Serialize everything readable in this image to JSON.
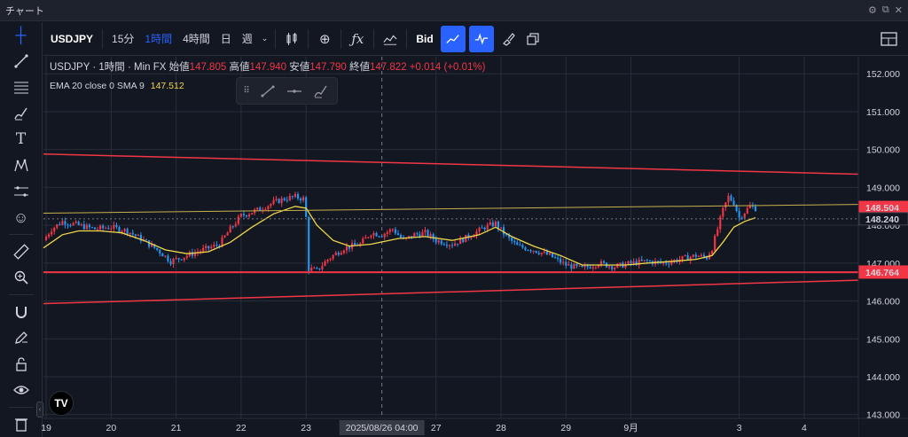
{
  "window": {
    "title": "チャート",
    "title_icons": [
      "settings-icon",
      "popout-icon",
      "close-icon"
    ]
  },
  "toolbar": {
    "symbol": "USDJPY",
    "intervals": [
      "15分",
      "1時間",
      "4時間",
      "日",
      "週"
    ],
    "active_interval": "1時間",
    "price_type": "Bid"
  },
  "legend": {
    "symbol": "USDJPY",
    "interval": "1時間",
    "source": "Min FX",
    "open_label": "始値",
    "open": "147.805",
    "high_label": "高値",
    "high": "147.940",
    "low_label": "安値",
    "low": "147.790",
    "close_label": "終値",
    "close": "147.822",
    "change": "+0.014 (+0.01%)",
    "indicator": "EMA 20 close 0 SMA 9",
    "indicator_value": "147.512"
  },
  "chart_data": {
    "type": "candlestick",
    "symbol": "USDJPY",
    "interval": "1時間",
    "ylim": [
      142.9,
      152.45
    ],
    "y_ticks": [
      143.0,
      144.0,
      145.0,
      146.0,
      147.0,
      148.0,
      149.0,
      150.0,
      151.0,
      152.0
    ],
    "x_ticks": [
      {
        "label": "19",
        "t": 0
      },
      {
        "label": "20",
        "t": 24
      },
      {
        "label": "21",
        "t": 48
      },
      {
        "label": "22",
        "t": 72
      },
      {
        "label": "23",
        "t": 96
      },
      {
        "label": "27",
        "t": 144
      },
      {
        "label": "28",
        "t": 168
      },
      {
        "label": "29",
        "t": 192
      },
      {
        "label": "9月",
        "t": 216
      },
      {
        "label": "3",
        "t": 256
      },
      {
        "label": "4",
        "t": 280
      }
    ],
    "xlim": [
      -1,
      300
    ],
    "crosshair": {
      "t": 124,
      "label": "2025/08/26  04:00"
    },
    "price_path": [
      [
        -1,
        147.6
      ],
      [
        2,
        147.9
      ],
      [
        6,
        148.1
      ],
      [
        12,
        148.0
      ],
      [
        18,
        147.9
      ],
      [
        24,
        147.95
      ],
      [
        30,
        147.85
      ],
      [
        36,
        147.6
      ],
      [
        42,
        147.3
      ],
      [
        46,
        147.05
      ],
      [
        52,
        147.2
      ],
      [
        58,
        147.35
      ],
      [
        64,
        147.5
      ],
      [
        68,
        147.9
      ],
      [
        72,
        148.25
      ],
      [
        78,
        148.4
      ],
      [
        84,
        148.6
      ],
      [
        88,
        148.7
      ],
      [
        92,
        148.75
      ],
      [
        95,
        148.7
      ],
      [
        96,
        148.2
      ],
      [
        97,
        146.85
      ],
      [
        100,
        146.8
      ],
      [
        104,
        147.1
      ],
      [
        110,
        147.4
      ],
      [
        116,
        147.5
      ],
      [
        120,
        147.8
      ],
      [
        124,
        147.75
      ],
      [
        128,
        147.9
      ],
      [
        132,
        147.6
      ],
      [
        136,
        147.75
      ],
      [
        140,
        147.8
      ],
      [
        144,
        147.6
      ],
      [
        150,
        147.5
      ],
      [
        156,
        147.7
      ],
      [
        162,
        147.95
      ],
      [
        166,
        148.05
      ],
      [
        170,
        147.7
      ],
      [
        174,
        147.45
      ],
      [
        180,
        147.35
      ],
      [
        186,
        147.2
      ],
      [
        192,
        146.95
      ],
      [
        198,
        146.85
      ],
      [
        204,
        147.0
      ],
      [
        210,
        146.9
      ],
      [
        216,
        147.0
      ],
      [
        222,
        147.05
      ],
      [
        228,
        147.0
      ],
      [
        234,
        147.1
      ],
      [
        240,
        147.2
      ],
      [
        244,
        147.15
      ],
      [
        246,
        147.4
      ],
      [
        248,
        147.9
      ],
      [
        250,
        148.4
      ],
      [
        252,
        148.75
      ],
      [
        254,
        148.6
      ],
      [
        256,
        148.2
      ],
      [
        258,
        148.35
      ],
      [
        260,
        148.5
      ],
      [
        262,
        148.45
      ]
    ],
    "series": [
      {
        "name": "EMA 20 close 0 SMA 9",
        "color": "#f0d64a",
        "values": [
          [
            -1,
            147.4
          ],
          [
            6,
            147.75
          ],
          [
            12,
            147.85
          ],
          [
            20,
            147.85
          ],
          [
            28,
            147.8
          ],
          [
            36,
            147.6
          ],
          [
            44,
            147.35
          ],
          [
            52,
            147.25
          ],
          [
            60,
            147.3
          ],
          [
            68,
            147.55
          ],
          [
            76,
            147.95
          ],
          [
            84,
            148.3
          ],
          [
            92,
            148.5
          ],
          [
            96,
            148.45
          ],
          [
            100,
            148.0
          ],
          [
            106,
            147.6
          ],
          [
            112,
            147.45
          ],
          [
            120,
            147.5
          ],
          [
            130,
            147.65
          ],
          [
            140,
            147.7
          ],
          [
            150,
            147.6
          ],
          [
            160,
            147.75
          ],
          [
            166,
            147.95
          ],
          [
            172,
            147.7
          ],
          [
            180,
            147.45
          ],
          [
            190,
            147.2
          ],
          [
            198,
            146.95
          ],
          [
            206,
            146.95
          ],
          [
            214,
            146.95
          ],
          [
            222,
            147.0
          ],
          [
            232,
            147.05
          ],
          [
            240,
            147.1
          ],
          [
            246,
            147.2
          ],
          [
            250,
            147.55
          ],
          [
            254,
            147.95
          ],
          [
            258,
            148.1
          ],
          [
            262,
            148.2
          ]
        ]
      }
    ],
    "lines": [
      {
        "from": [
          -1,
          149.88
        ],
        "to": [
          300,
          149.35
        ],
        "color": "#f23645",
        "width": 1.5
      },
      {
        "from": [
          -1,
          145.93
        ],
        "to": [
          300,
          146.55
        ],
        "color": "#f23645",
        "width": 1.5
      },
      {
        "from": [
          -1,
          146.76
        ],
        "to": [
          300,
          146.76
        ],
        "color": "#f23645",
        "width": 2
      },
      {
        "from": [
          -1,
          148.32
        ],
        "to": [
          300,
          148.55
        ],
        "color": "#c8b04a",
        "width": 1
      }
    ],
    "price_labels": [
      {
        "text": "148.504",
        "y": 148.47,
        "bg": "#f23645",
        "fg": "#ffffff"
      },
      {
        "text": "148.240",
        "y": 148.17,
        "bg": "#131722",
        "fg": "#ffffff"
      },
      {
        "text": "146.764",
        "y": 146.764,
        "bg": "#f23645",
        "fg": "#ffffff"
      }
    ],
    "colors": {
      "up": "#f23645",
      "down": "#2196f3",
      "grid": "#2a2e39",
      "bg": "#131722"
    }
  }
}
